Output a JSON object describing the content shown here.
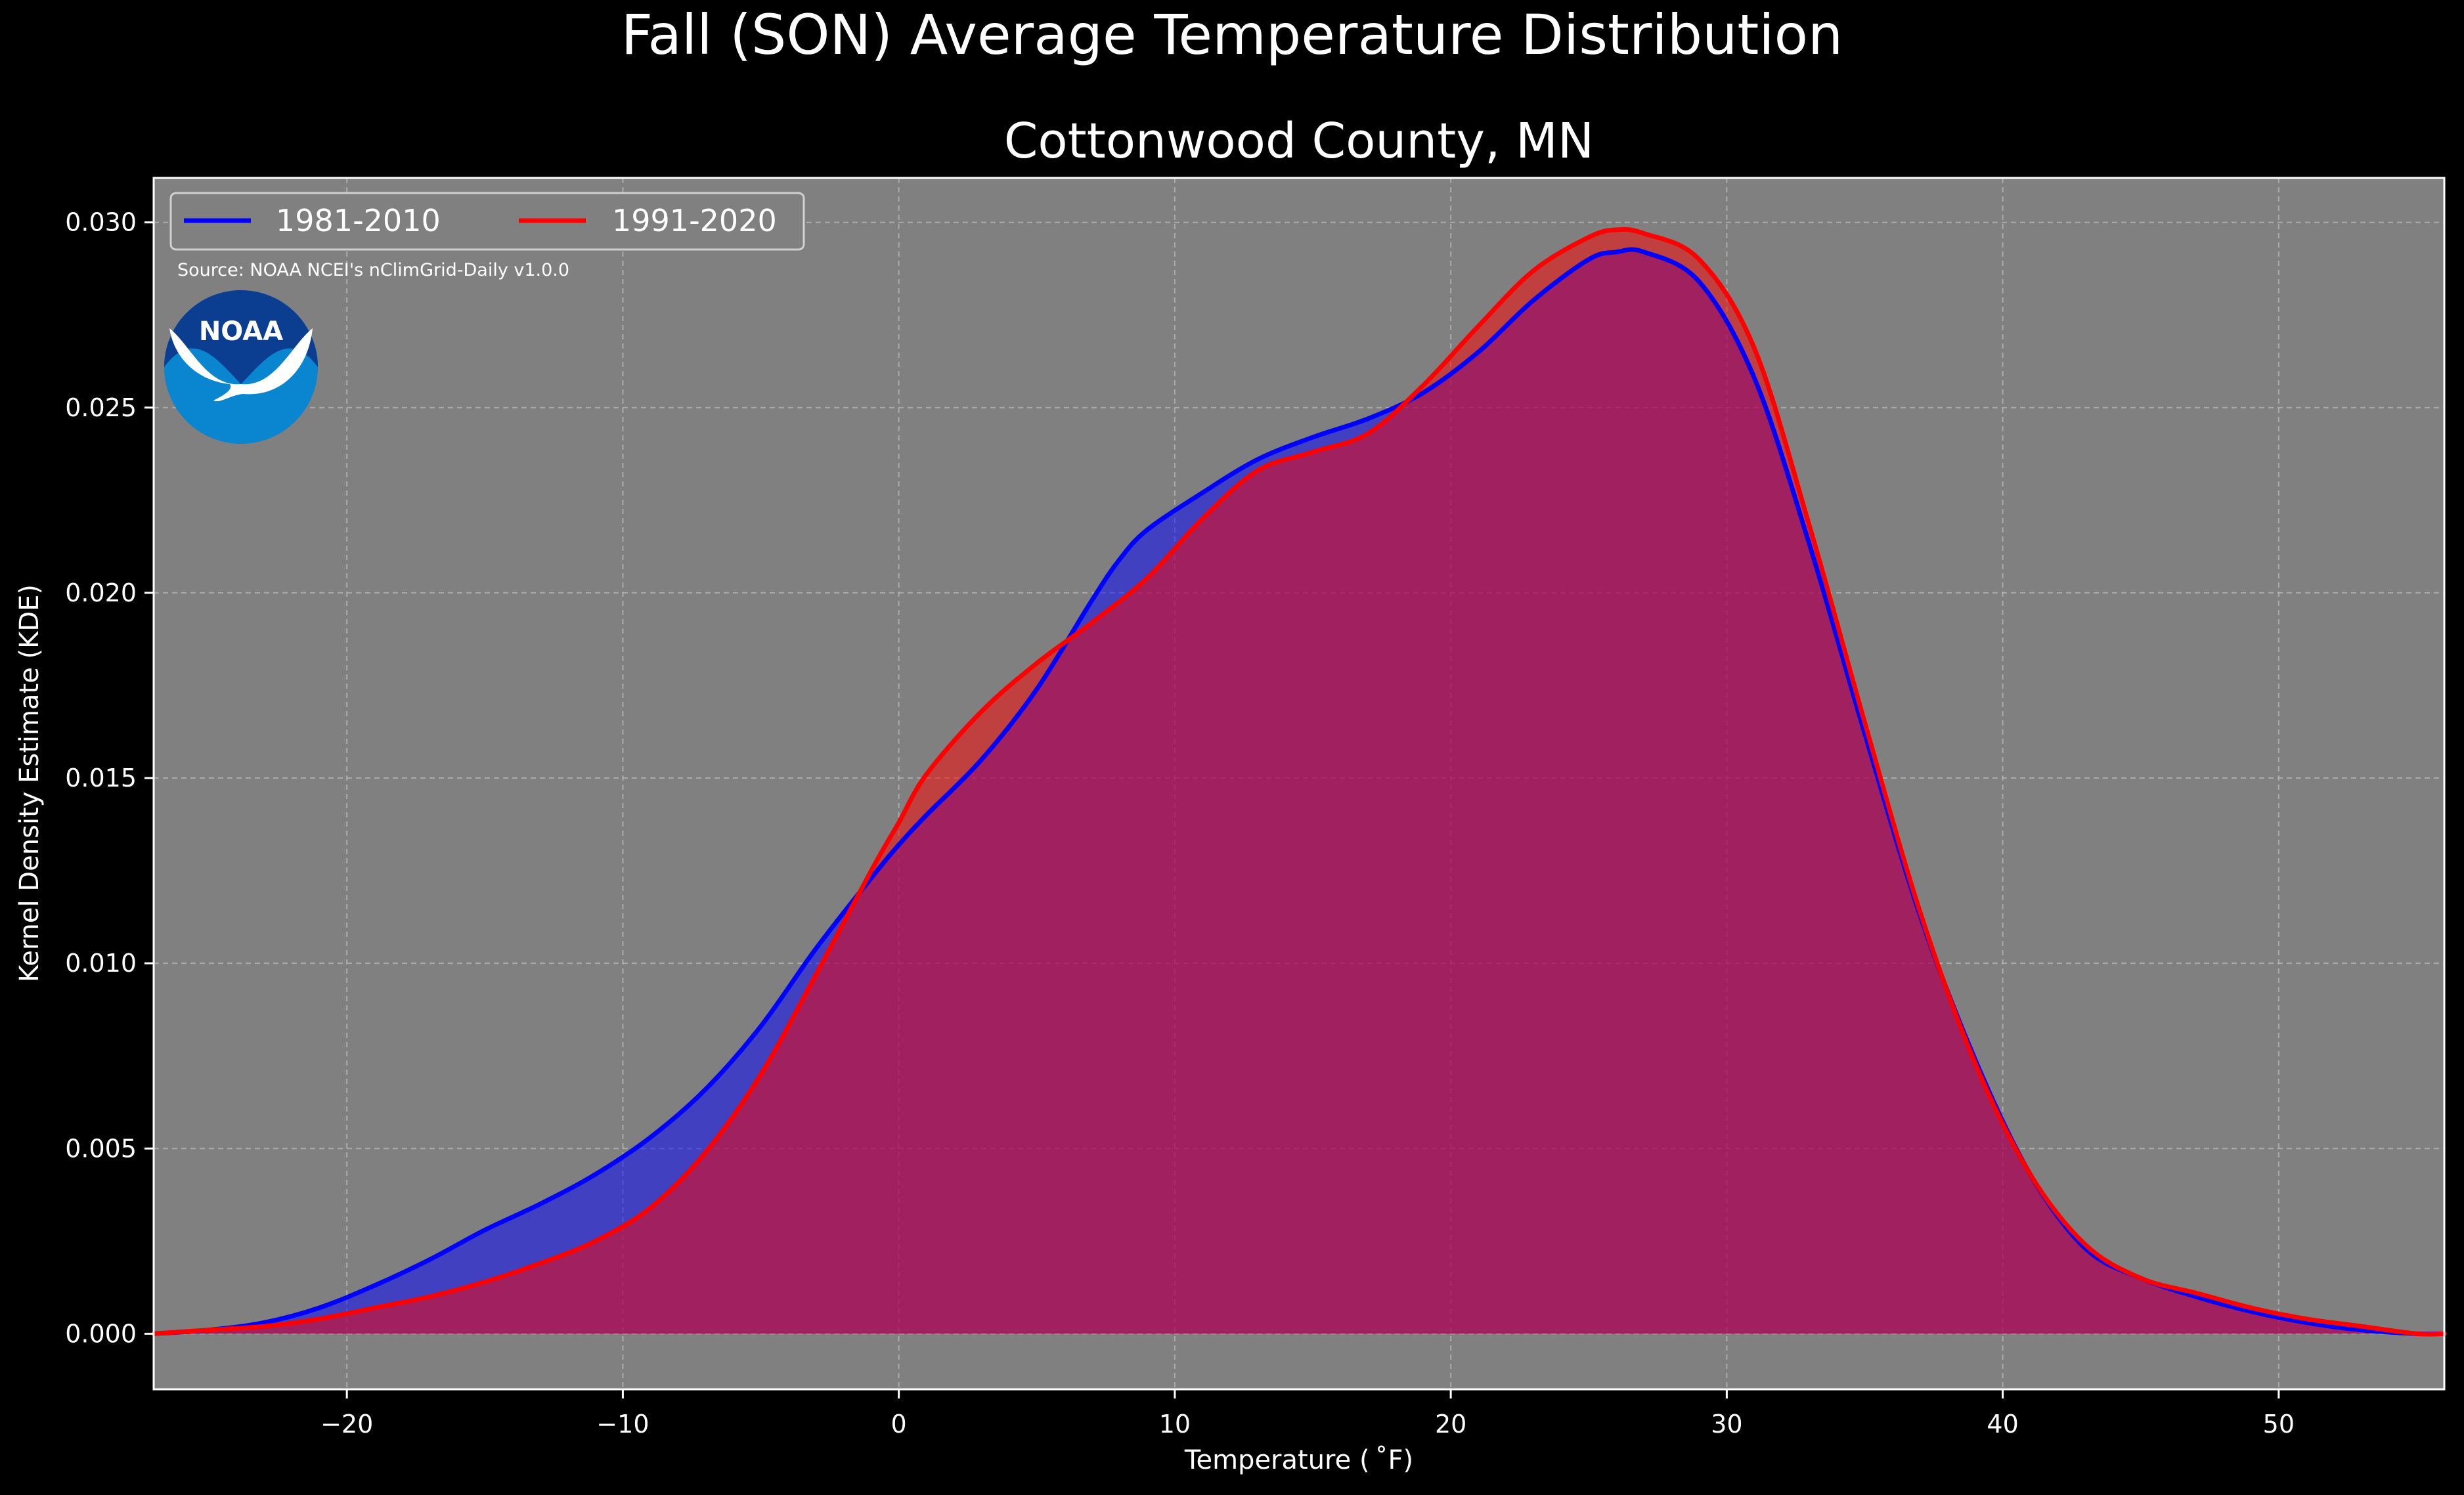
{
  "suptitle": "Fall (SON) Average Temperature Distribution",
  "source_note": "Source: NOAA NCEI's nClimGrid-Daily v1.0.0",
  "logo_text": "NOAA",
  "colors": {
    "background": "#000000",
    "plot_bg": "#808080",
    "series_1": "#0000ff",
    "series_2": "#ff0000"
  },
  "chart_data": {
    "type": "area",
    "title": "Cottonwood County, MN",
    "xlabel": "Temperature ($^\\circ$F)",
    "xlabel_display": "Temperature ( ˚F)",
    "ylabel": "Kernel Density Estimate (KDE)",
    "xlim": [
      -27,
      56
    ],
    "ylim": [
      -0.0015,
      0.0312
    ],
    "x_ticks": [
      -20,
      -10,
      0,
      10,
      20,
      30,
      40,
      50
    ],
    "x_tick_labels": [
      "−20",
      "−10",
      "0",
      "10",
      "20",
      "30",
      "40",
      "50"
    ],
    "y_ticks": [
      0.0,
      0.005,
      0.01,
      0.015,
      0.02,
      0.025,
      0.03
    ],
    "y_tick_labels": [
      "0.000",
      "0.005",
      "0.010",
      "0.015",
      "0.020",
      "0.025",
      "0.030"
    ],
    "grid": true,
    "legend_position": "top-left",
    "series": [
      {
        "name": "1981-2010",
        "color": "#0000ff",
        "x": [
          -27,
          -25,
          -23,
          -21,
          -19,
          -17,
          -15,
          -13,
          -11,
          -9,
          -7,
          -5,
          -3,
          -1,
          0,
          1,
          3,
          5,
          7,
          8,
          9,
          11,
          13,
          15,
          17,
          19,
          21,
          23,
          25,
          26,
          27,
          29,
          31,
          33,
          35,
          37,
          39,
          41,
          43,
          45,
          47,
          49,
          51,
          53,
          55,
          56
        ],
        "y": [
          0.0,
          0.0001,
          0.0003,
          0.0007,
          0.0013,
          0.002,
          0.0028,
          0.0035,
          0.0043,
          0.0053,
          0.0066,
          0.0083,
          0.0104,
          0.0123,
          0.0132,
          0.014,
          0.0155,
          0.0174,
          0.0198,
          0.0209,
          0.0217,
          0.0227,
          0.0236,
          0.0242,
          0.0247,
          0.0254,
          0.0265,
          0.0279,
          0.029,
          0.0292,
          0.0292,
          0.0284,
          0.0258,
          0.0213,
          0.0162,
          0.0113,
          0.0074,
          0.0043,
          0.0023,
          0.0015,
          0.001,
          0.0006,
          0.0003,
          0.0001,
          0.0,
          0.0
        ]
      },
      {
        "name": "1991-2020",
        "color": "#ff0000",
        "x": [
          -27,
          -25,
          -23,
          -21,
          -19,
          -17,
          -15,
          -13,
          -11,
          -9,
          -7,
          -5,
          -3,
          -1,
          0,
          1,
          3,
          5,
          7,
          9,
          11,
          13,
          15,
          17,
          19,
          21,
          23,
          25,
          26,
          27,
          29,
          31,
          33,
          35,
          37,
          39,
          41,
          43,
          45,
          47,
          49,
          51,
          53,
          55,
          56
        ],
        "y": [
          0.0,
          0.0001,
          0.0002,
          0.0004,
          0.0007,
          0.001,
          0.0014,
          0.0019,
          0.0025,
          0.0034,
          0.0049,
          0.007,
          0.0097,
          0.0125,
          0.0138,
          0.0151,
          0.0168,
          0.0181,
          0.0192,
          0.0204,
          0.022,
          0.0233,
          0.0238,
          0.0243,
          0.0256,
          0.0272,
          0.0287,
          0.0296,
          0.0298,
          0.0297,
          0.029,
          0.0266,
          0.0218,
          0.0165,
          0.0114,
          0.0073,
          0.0043,
          0.0024,
          0.0015,
          0.0011,
          0.0007,
          0.0004,
          0.0002,
          0.0,
          0.0
        ]
      }
    ]
  }
}
